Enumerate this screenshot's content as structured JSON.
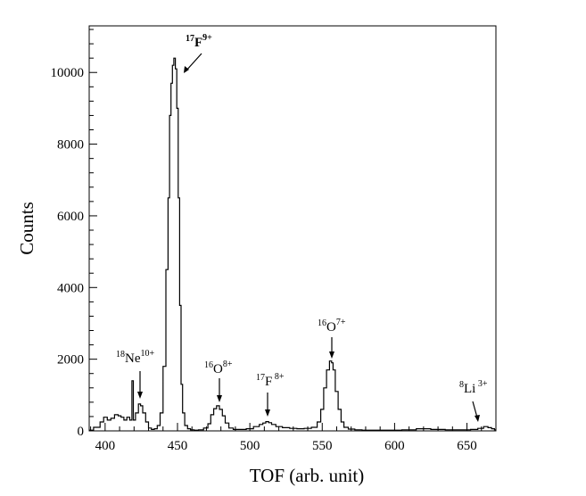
{
  "chart_data": {
    "type": "line",
    "xlabel": "TOF (arb. unit)",
    "ylabel": "Counts",
    "xlim": [
      389,
      670
    ],
    "ylim": [
      0,
      11300
    ],
    "xticks": [
      400,
      450,
      500,
      550,
      600,
      650
    ],
    "yticks": [
      0,
      2000,
      4000,
      6000,
      8000,
      10000
    ],
    "grid": false,
    "legend": "none",
    "line_color": "#000000",
    "series": [
      {
        "x": [
          389,
          395,
          398,
          400,
          403,
          405,
          408,
          410,
          412,
          414,
          416,
          418,
          419,
          420,
          422,
          424,
          425,
          427,
          429,
          431,
          433,
          435,
          437,
          439,
          441,
          443,
          444,
          445,
          446,
          447,
          448,
          449,
          450,
          451,
          452,
          453,
          454,
          456,
          458,
          460,
          463,
          466,
          470,
          472,
          474,
          476,
          478,
          480,
          482,
          484,
          487,
          490,
          495,
          500,
          505,
          508,
          510,
          512,
          514,
          516,
          520,
          525,
          530,
          535,
          540,
          545,
          548,
          550,
          552,
          554,
          556,
          557,
          558,
          560,
          562,
          564,
          566,
          570,
          575,
          580,
          590,
          600,
          610,
          620,
          630,
          640,
          650,
          655,
          660,
          663,
          666,
          668,
          670
        ],
        "y": [
          20,
          100,
          250,
          380,
          300,
          350,
          450,
          420,
          380,
          300,
          380,
          300,
          1400,
          300,
          500,
          750,
          700,
          500,
          250,
          80,
          40,
          60,
          150,
          500,
          1800,
          4500,
          6500,
          8800,
          9700,
          10200,
          10400,
          10100,
          9000,
          6500,
          3500,
          1300,
          500,
          150,
          60,
          30,
          20,
          30,
          80,
          200,
          450,
          620,
          700,
          600,
          420,
          220,
          80,
          40,
          40,
          60,
          120,
          180,
          220,
          260,
          230,
          180,
          120,
          90,
          70,
          60,
          70,
          100,
          250,
          600,
          1200,
          1700,
          1950,
          1900,
          1700,
          1100,
          600,
          250,
          100,
          50,
          30,
          20,
          20,
          20,
          30,
          60,
          40,
          30,
          30,
          40,
          70,
          120,
          90,
          60,
          30
        ]
      }
    ],
    "annotations": [
      {
        "label": "17F9+",
        "x": 453,
        "y": 10150
      },
      {
        "label": "18Ne10+",
        "x": 424,
        "y": 900
      },
      {
        "label": "16O8+",
        "x": 478,
        "y": 800
      },
      {
        "label": "17F 8+",
        "x": 512,
        "y": 400
      },
      {
        "label": "16O7+",
        "x": 557,
        "y": 2000
      },
      {
        "label": "8Li 3+",
        "x": 663,
        "y": 200
      }
    ]
  }
}
